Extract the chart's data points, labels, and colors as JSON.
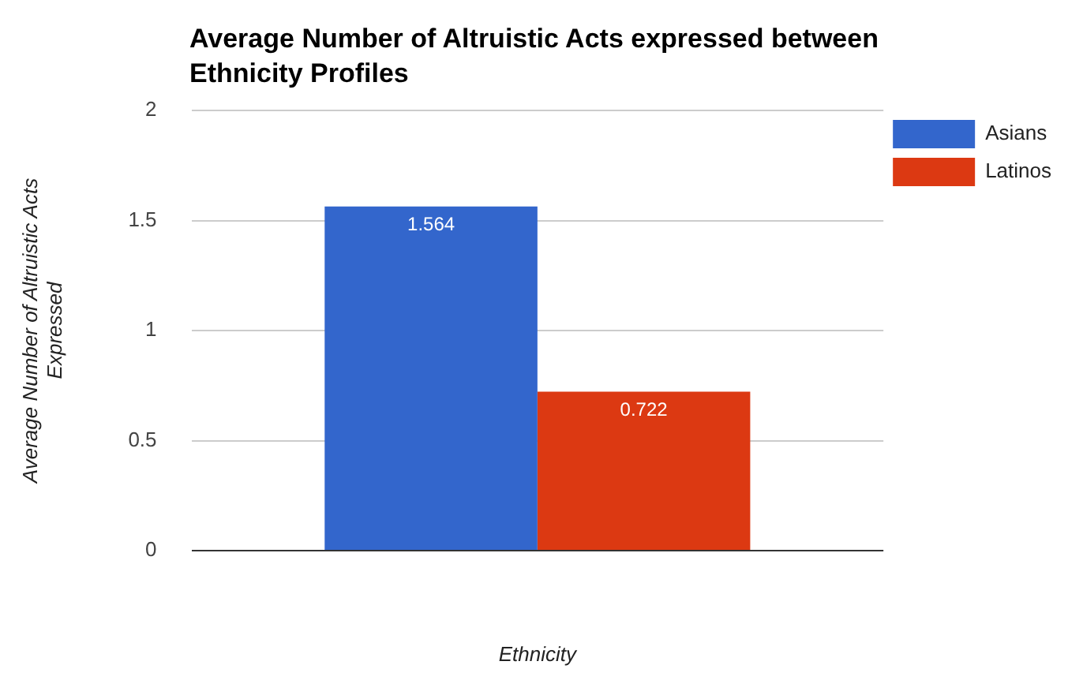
{
  "chart_data": {
    "type": "bar",
    "title": "Average Number of Altruistic Acts expressed between Ethnicity Profiles",
    "xlabel": "Ethnicity",
    "ylabel": "Average Number of Altruistic Acts Expressed",
    "categories": [
      null
    ],
    "series": [
      {
        "name": "Asians",
        "color": "#3366cc",
        "values": [
          1.564
        ]
      },
      {
        "name": "Latinos",
        "color": "#dc3912",
        "values": [
          0.722
        ]
      }
    ],
    "ylim": [
      0,
      2
    ],
    "yticks": [
      0,
      0.5,
      1,
      1.5,
      2
    ],
    "grid": "y",
    "legend": "right",
    "data_labels": true
  }
}
